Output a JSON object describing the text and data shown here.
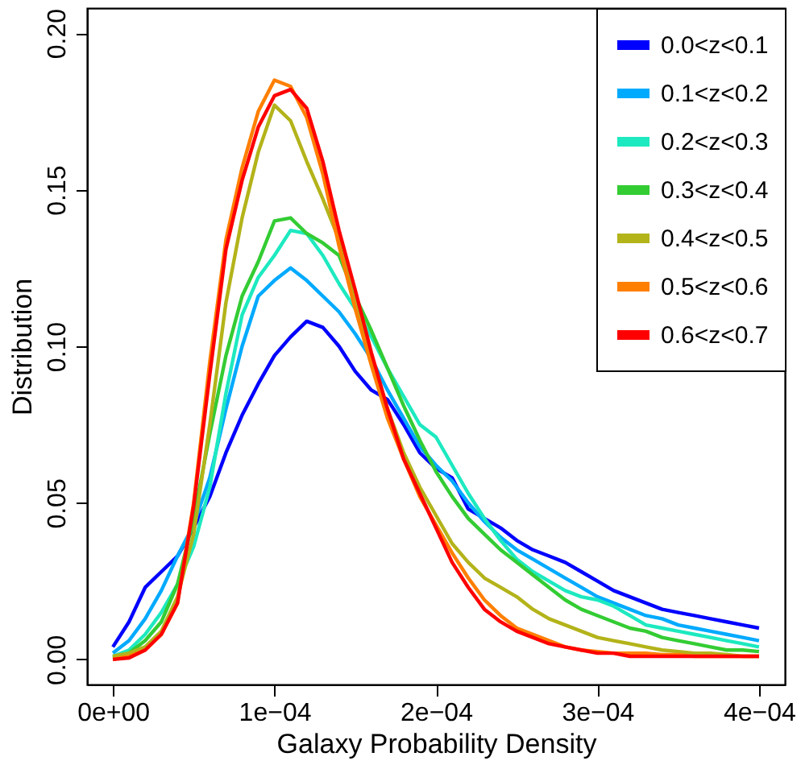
{
  "chart_data": {
    "type": "line",
    "xlabel": "Galaxy Probability Density",
    "ylabel": "Distribution",
    "x": [
      0,
      1e-05,
      2e-05,
      3e-05,
      4e-05,
      5e-05,
      6e-05,
      7e-05,
      8e-05,
      9e-05,
      0.0001,
      0.00011,
      0.00012,
      0.00013,
      0.00014,
      0.00015,
      0.00016,
      0.00017,
      0.00018,
      0.00019,
      0.0002,
      0.00021,
      0.00022,
      0.00023,
      0.00024,
      0.00025,
      0.00026,
      0.00027,
      0.00028,
      0.00029,
      0.0003,
      0.00031,
      0.00032,
      0.00033,
      0.00034,
      0.00035,
      0.00036,
      0.00037,
      0.00038,
      0.00039,
      0.0004
    ],
    "series": [
      {
        "name": "0.0<z<0.1",
        "color": "#0000ff",
        "values": [
          0.004,
          0.012,
          0.023,
          0.028,
          0.033,
          0.042,
          0.052,
          0.066,
          0.078,
          0.088,
          0.097,
          0.103,
          0.108,
          0.106,
          0.1,
          0.092,
          0.086,
          0.083,
          0.075,
          0.066,
          0.061,
          0.058,
          0.048,
          0.045,
          0.042,
          0.038,
          0.035,
          0.033,
          0.031,
          0.028,
          0.025,
          0.022,
          0.02,
          0.018,
          0.016,
          0.015,
          0.014,
          0.013,
          0.012,
          0.011,
          0.01
        ]
      },
      {
        "name": "0.1<z<0.2",
        "color": "#00aaff",
        "values": [
          0.002,
          0.006,
          0.013,
          0.022,
          0.033,
          0.043,
          0.058,
          0.08,
          0.1,
          0.116,
          0.121,
          0.125,
          0.121,
          0.116,
          0.111,
          0.104,
          0.096,
          0.086,
          0.077,
          0.068,
          0.062,
          0.057,
          0.05,
          0.044,
          0.039,
          0.035,
          0.032,
          0.029,
          0.026,
          0.023,
          0.02,
          0.018,
          0.016,
          0.014,
          0.013,
          0.011,
          0.01,
          0.009,
          0.008,
          0.007,
          0.006
        ]
      },
      {
        "name": "0.2<z<0.3",
        "color": "#1de9c0",
        "values": [
          0.001,
          0.003,
          0.008,
          0.015,
          0.024,
          0.036,
          0.055,
          0.085,
          0.11,
          0.122,
          0.129,
          0.137,
          0.136,
          0.129,
          0.12,
          0.112,
          0.103,
          0.093,
          0.084,
          0.075,
          0.071,
          0.062,
          0.053,
          0.045,
          0.038,
          0.032,
          0.028,
          0.025,
          0.022,
          0.02,
          0.019,
          0.017,
          0.014,
          0.011,
          0.01,
          0.009,
          0.008,
          0.007,
          0.006,
          0.005,
          0.004
        ]
      },
      {
        "name": "0.3<z<0.4",
        "color": "#33cc33",
        "values": [
          0.0005,
          0.002,
          0.006,
          0.012,
          0.024,
          0.045,
          0.072,
          0.097,
          0.116,
          0.127,
          0.14,
          0.141,
          0.136,
          0.133,
          0.129,
          0.116,
          0.105,
          0.093,
          0.081,
          0.07,
          0.06,
          0.052,
          0.045,
          0.04,
          0.035,
          0.031,
          0.027,
          0.023,
          0.019,
          0.016,
          0.014,
          0.012,
          0.01,
          0.009,
          0.007,
          0.006,
          0.005,
          0.004,
          0.003,
          0.003,
          0.0025
        ]
      },
      {
        "name": "0.4<z<0.5",
        "color": "#b3b31a",
        "values": [
          0.001,
          0.002,
          0.004,
          0.009,
          0.02,
          0.04,
          0.075,
          0.114,
          0.141,
          0.162,
          0.177,
          0.172,
          0.159,
          0.147,
          0.134,
          0.116,
          0.097,
          0.08,
          0.066,
          0.055,
          0.046,
          0.037,
          0.031,
          0.026,
          0.023,
          0.02,
          0.016,
          0.013,
          0.011,
          0.009,
          0.007,
          0.006,
          0.005,
          0.004,
          0.003,
          0.0025,
          0.002,
          0.002,
          0.0015,
          0.001,
          0.001
        ]
      },
      {
        "name": "0.5<z<0.6",
        "color": "#ff7f00",
        "values": [
          0,
          0.001,
          0.003,
          0.008,
          0.018,
          0.05,
          0.095,
          0.134,
          0.157,
          0.175,
          0.185,
          0.183,
          0.173,
          0.155,
          0.132,
          0.112,
          0.094,
          0.077,
          0.064,
          0.052,
          0.043,
          0.034,
          0.026,
          0.019,
          0.014,
          0.01,
          0.008,
          0.006,
          0.004,
          0.003,
          0.0025,
          0.002,
          0.002,
          0.002,
          0.0015,
          0.0015,
          0.001,
          0.001,
          0.001,
          0.001,
          0.001
        ]
      },
      {
        "name": "0.6<z<0.7",
        "color": "#ff0000",
        "values": [
          0,
          0.0005,
          0.003,
          0.008,
          0.018,
          0.049,
          0.091,
          0.131,
          0.153,
          0.17,
          0.18,
          0.182,
          0.176,
          0.159,
          0.137,
          0.118,
          0.098,
          0.08,
          0.064,
          0.053,
          0.042,
          0.031,
          0.023,
          0.016,
          0.012,
          0.009,
          0.007,
          0.005,
          0.004,
          0.003,
          0.002,
          0.002,
          0.001,
          0.001,
          0.001,
          0.001,
          0.001,
          0.001,
          0.001,
          0.001,
          0.001
        ]
      }
    ],
    "xlim": [
      -1.6e-05,
      0.000416
    ],
    "ylim": [
      -0.008,
      0.208
    ],
    "xticks": [
      {
        "value": 0,
        "label": "0e+00"
      },
      {
        "value": 0.0001,
        "label": "1e−04"
      },
      {
        "value": 0.0002,
        "label": "2e−04"
      },
      {
        "value": 0.0003,
        "label": "3e−04"
      },
      {
        "value": 0.0004,
        "label": "4e−04"
      }
    ],
    "yticks": [
      {
        "value": 0,
        "label": "0.00"
      },
      {
        "value": 0.05,
        "label": "0.05"
      },
      {
        "value": 0.1,
        "label": "0.10"
      },
      {
        "value": 0.15,
        "label": "0.15"
      },
      {
        "value": 0.2,
        "label": "0.20"
      }
    ],
    "grid": false,
    "legend": "top right",
    "marker": "none",
    "line_style": "solid"
  }
}
